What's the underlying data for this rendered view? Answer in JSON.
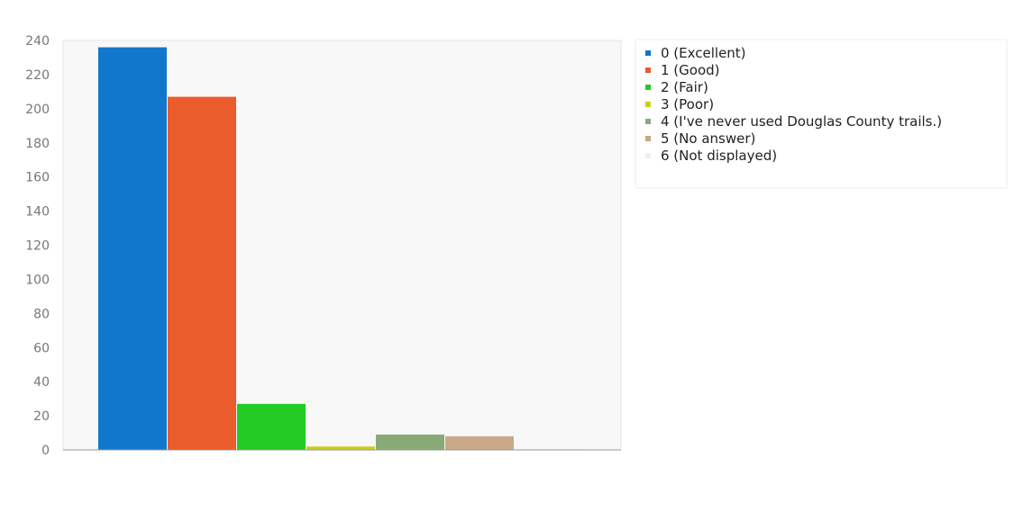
{
  "chart_data": {
    "type": "bar",
    "categories": [
      "0 (Excellent)",
      "1 (Good)",
      "2 (Fair)",
      "3 (Poor)",
      "4 (I've never used Douglas County trails.)",
      "5 (No answer)",
      "6 (Not displayed)"
    ],
    "values": [
      236,
      207,
      27,
      2,
      9,
      8,
      0
    ],
    "colors": [
      "#1177cc",
      "#ea5c2c",
      "#22cc22",
      "#cccc22",
      "#88aa77",
      "#c8a887",
      "#f5f0e4"
    ],
    "title": "",
    "xlabel": "",
    "ylabel": "",
    "ylim": [
      0,
      240
    ],
    "y_ticks": [
      "0",
      "20",
      "40",
      "60",
      "80",
      "100",
      "120",
      "140",
      "160",
      "180",
      "200",
      "220",
      "240"
    ],
    "grid": false,
    "legend_position": "top-right"
  }
}
